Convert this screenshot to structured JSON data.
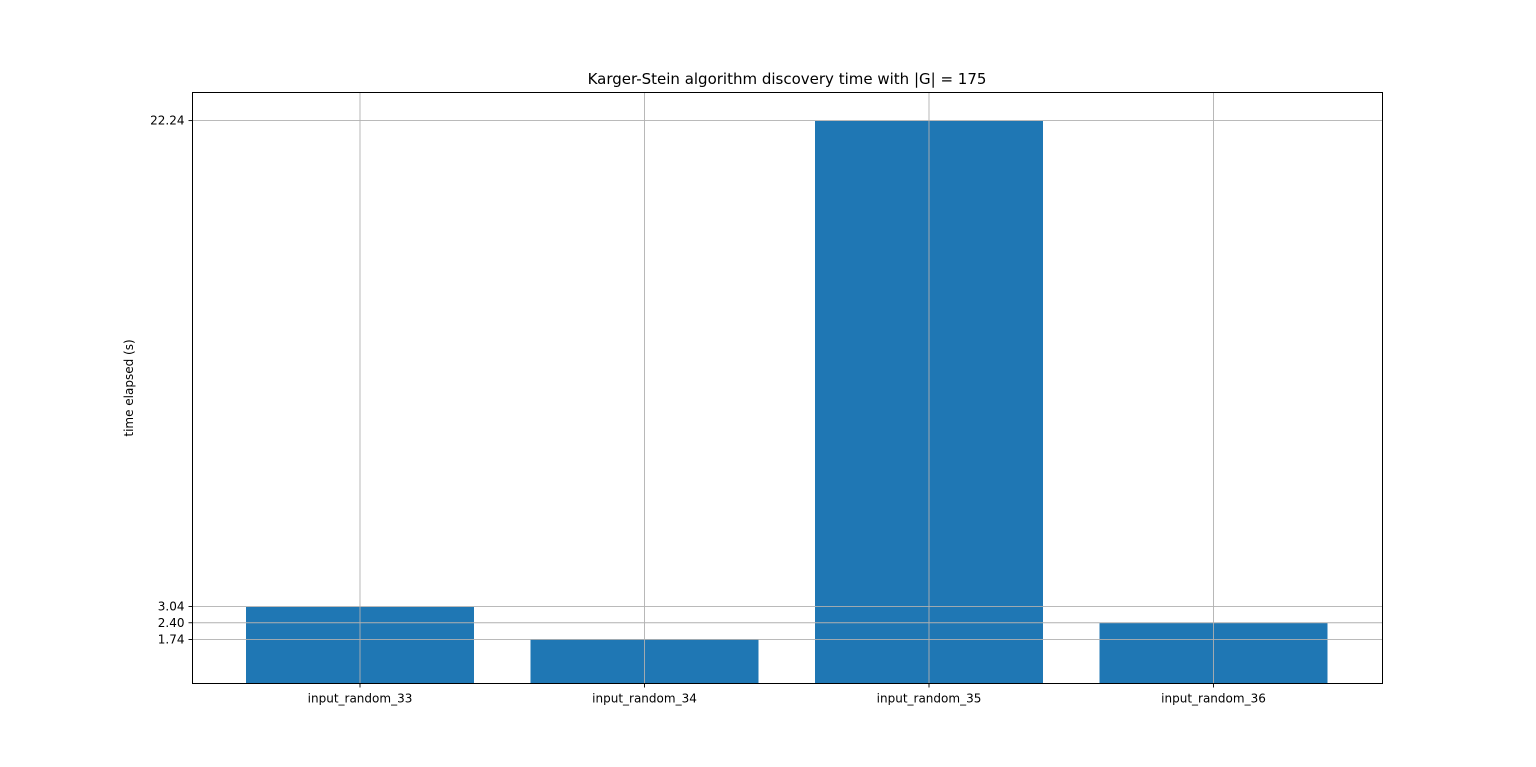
{
  "chart_data": {
    "type": "bar",
    "title": "Karger-Stein algorithm discovery time with |G| = 175",
    "xlabel": "",
    "ylabel": "time elapsed (s)",
    "categories": [
      "input_random_33",
      "input_random_34",
      "input_random_35",
      "input_random_36"
    ],
    "values": [
      3.04,
      1.74,
      22.24,
      2.4
    ],
    "yticks": [
      1.74,
      2.4,
      3.04,
      22.24
    ],
    "ytick_labels": [
      "1.74",
      "2.40",
      "3.04",
      "22.24"
    ],
    "ylim": [
      0,
      23.35
    ],
    "grid": true,
    "bar_color": "#1f77b4"
  }
}
